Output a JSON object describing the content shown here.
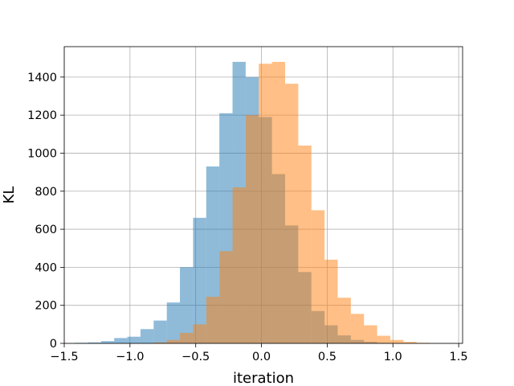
{
  "chart_data": {
    "type": "bar",
    "chart_kind": "histogram",
    "title": "",
    "xlabel": "iteration",
    "ylabel": "KL",
    "xlim": [
      -1.5,
      1.53
    ],
    "ylim": [
      0,
      1560
    ],
    "xticks": [
      -1.5,
      -1.0,
      -0.5,
      0.0,
      0.5,
      1.0,
      1.5
    ],
    "xtick_labels": [
      "−1.5",
      "−1.0",
      "−0.5",
      "0.0",
      "0.5",
      "1.0",
      "1.5"
    ],
    "yticks": [
      0,
      200,
      400,
      600,
      800,
      1000,
      1200,
      1400
    ],
    "ytick_labels": [
      "0",
      "200",
      "400",
      "600",
      "800",
      "1000",
      "1200",
      "1400"
    ],
    "grid": true,
    "series": [
      {
        "color": "#1f77b4",
        "alpha": 0.5,
        "bins": [
          [
            -1.42,
            -1.32,
            3
          ],
          [
            -1.32,
            -1.22,
            5
          ],
          [
            -1.22,
            -1.12,
            12
          ],
          [
            -1.12,
            -1.02,
            28
          ],
          [
            -1.02,
            -0.92,
            35
          ],
          [
            -0.92,
            -0.82,
            75
          ],
          [
            -0.82,
            -0.72,
            120
          ],
          [
            -0.72,
            -0.62,
            215
          ],
          [
            -0.62,
            -0.52,
            400
          ],
          [
            -0.52,
            -0.42,
            660
          ],
          [
            -0.42,
            -0.32,
            930
          ],
          [
            -0.32,
            -0.22,
            1210
          ],
          [
            -0.22,
            -0.12,
            1480
          ],
          [
            -0.12,
            -0.02,
            1400
          ],
          [
            -0.02,
            0.08,
            1190
          ],
          [
            0.08,
            0.18,
            890
          ],
          [
            0.18,
            0.28,
            620
          ],
          [
            0.28,
            0.38,
            375
          ],
          [
            0.38,
            0.48,
            170
          ],
          [
            0.48,
            0.58,
            95
          ],
          [
            0.58,
            0.68,
            42
          ],
          [
            0.68,
            0.78,
            18
          ],
          [
            0.78,
            0.88,
            8
          ],
          [
            0.88,
            0.98,
            3
          ]
        ]
      },
      {
        "color": "#ff7f0e",
        "alpha": 0.5,
        "bins": [
          [
            -0.82,
            -0.72,
            5
          ],
          [
            -0.72,
            -0.62,
            18
          ],
          [
            -0.62,
            -0.52,
            55
          ],
          [
            -0.52,
            -0.42,
            100
          ],
          [
            -0.42,
            -0.32,
            245
          ],
          [
            -0.32,
            -0.22,
            485
          ],
          [
            -0.22,
            -0.12,
            820
          ],
          [
            -0.12,
            -0.02,
            1200
          ],
          [
            -0.02,
            0.08,
            1470
          ],
          [
            0.08,
            0.18,
            1480
          ],
          [
            0.18,
            0.28,
            1365
          ],
          [
            0.28,
            0.38,
            1040
          ],
          [
            0.38,
            0.48,
            700
          ],
          [
            0.48,
            0.58,
            440
          ],
          [
            0.58,
            0.68,
            240
          ],
          [
            0.68,
            0.78,
            155
          ],
          [
            0.78,
            0.88,
            95
          ],
          [
            0.88,
            0.98,
            40
          ],
          [
            0.98,
            1.08,
            18
          ],
          [
            1.08,
            1.18,
            8
          ],
          [
            1.18,
            1.28,
            3
          ],
          [
            1.28,
            1.38,
            1
          ]
        ]
      }
    ]
  }
}
